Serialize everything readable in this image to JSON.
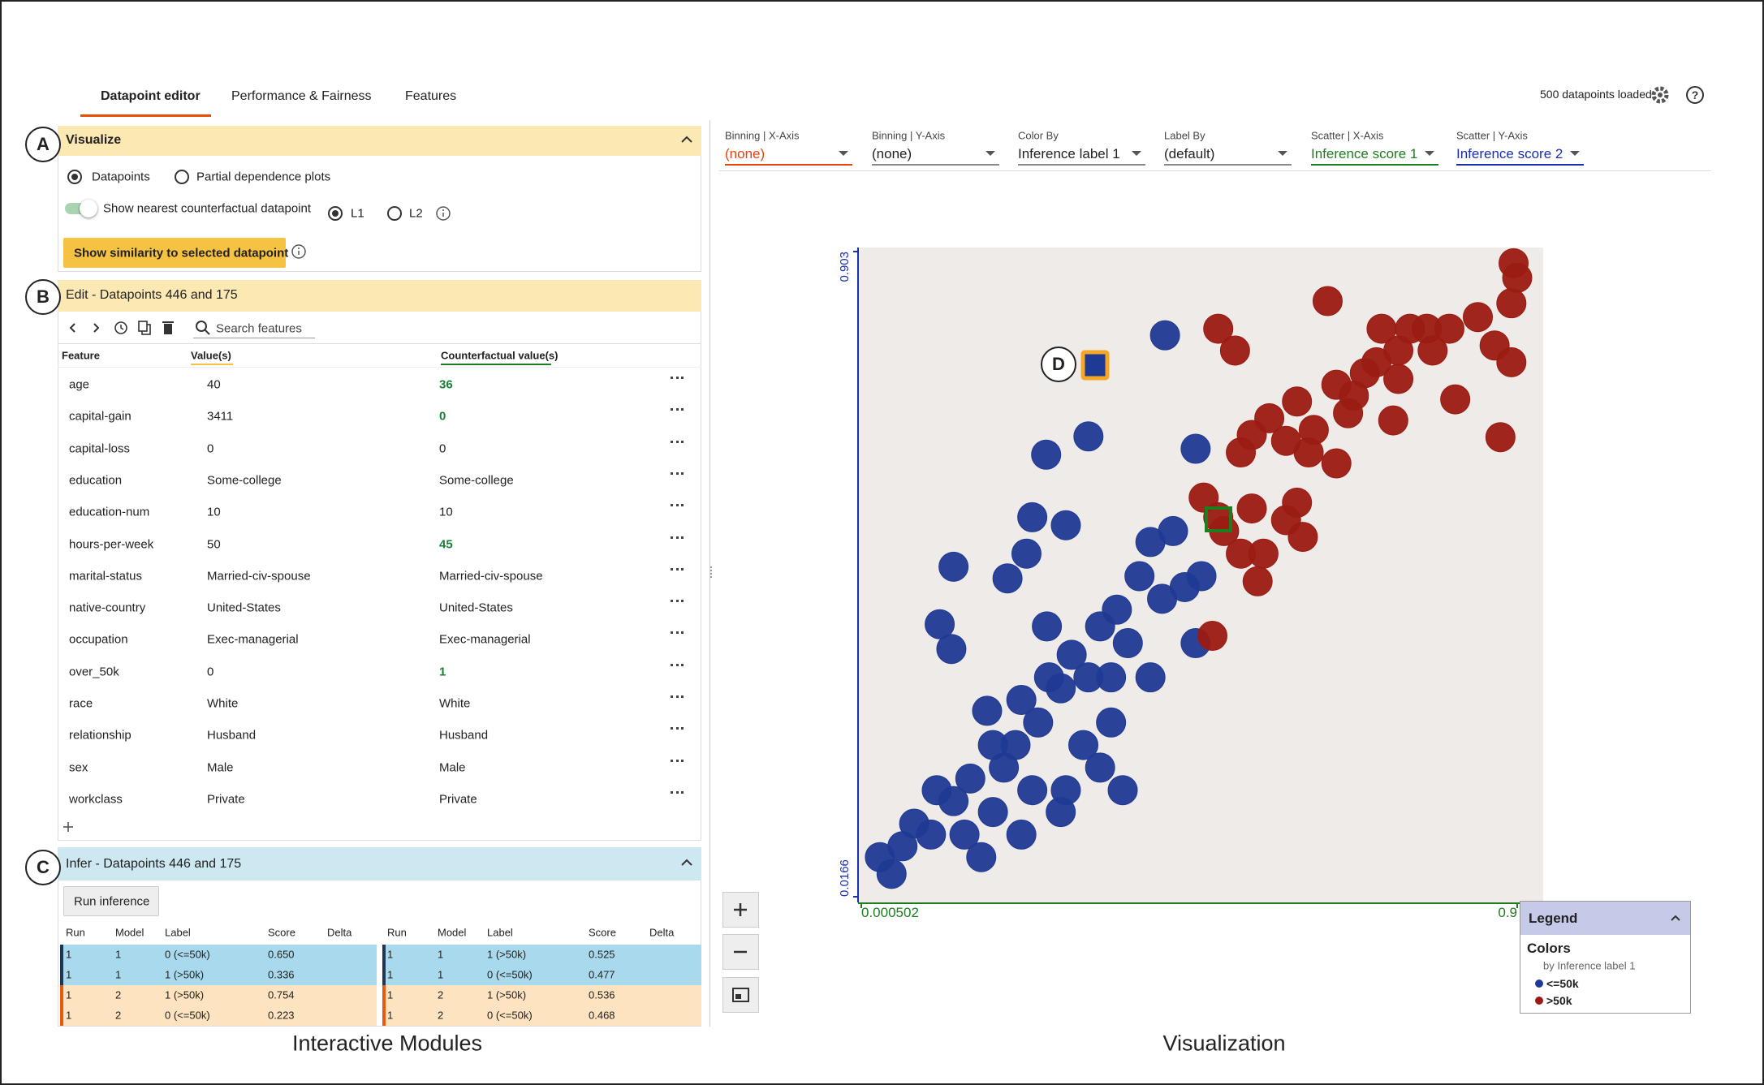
{
  "tabs": [
    "Datapoint editor",
    "Performance & Fairness",
    "Features"
  ],
  "status": "500 datapoints loaded",
  "toolbar": [
    {
      "label": "Binning | X-Axis",
      "value": "(none)",
      "color": "#e8430b"
    },
    {
      "label": "Binning | Y-Axis",
      "value": "(none)",
      "color": "#222222"
    },
    {
      "label": "Color By",
      "value": "Inference label 1",
      "color": "#222222"
    },
    {
      "label": "Label By",
      "value": "(default)",
      "color": "#222222"
    },
    {
      "label": "Scatter | X-Axis",
      "value": "Inference score 1",
      "color": "#1e7d1e"
    },
    {
      "label": "Scatter | Y-Axis",
      "value": "Inference score 2",
      "color": "#1a2fb0"
    }
  ],
  "visualize": {
    "marker": "A",
    "title": "Visualize",
    "options": [
      "Datapoints",
      "Partial dependence plots"
    ],
    "counterfactual": "Show nearest counterfactual datapoint",
    "distances": [
      "L1",
      "L2"
    ],
    "button": "Show similarity to selected datapoint"
  },
  "edit": {
    "marker": "B",
    "title": "Edit - Datapoints 446 and 175",
    "search": "Search features",
    "columns": [
      "Feature",
      "Value(s)",
      "Counterfactual value(s)"
    ],
    "rows": [
      [
        "age",
        "40",
        "36"
      ],
      [
        "capital-gain",
        "3411",
        "0"
      ],
      [
        "capital-loss",
        "0",
        "0"
      ],
      [
        "education",
        "Some-college",
        "Some-college"
      ],
      [
        "education-num",
        "10",
        "10"
      ],
      [
        "hours-per-week",
        "50",
        "45"
      ],
      [
        "marital-status",
        "Married-civ-spouse",
        "Married-civ-spouse"
      ],
      [
        "native-country",
        "United-States",
        "United-States"
      ],
      [
        "occupation",
        "Exec-managerial",
        "Exec-managerial"
      ],
      [
        "over_50k",
        "0",
        "1"
      ],
      [
        "race",
        "White",
        "White"
      ],
      [
        "relationship",
        "Husband",
        "Husband"
      ],
      [
        "sex",
        "Male",
        "Male"
      ],
      [
        "workclass",
        "Private",
        "Private"
      ]
    ]
  },
  "infer": {
    "marker": "C",
    "title": "Infer - Datapoints 446 and 175",
    "button": "Run inference",
    "columns": [
      "Run",
      "Model",
      "Label",
      "Score",
      "Delta"
    ],
    "tables": [
      [
        [
          "1",
          "1",
          "0 (<=50k)",
          "0.650"
        ],
        [
          "1",
          "1",
          "1 (>50k)",
          "0.336"
        ],
        [
          "1",
          "2",
          "1 (>50k)",
          "0.754"
        ],
        [
          "1",
          "2",
          "0 (<=50k)",
          "0.223"
        ]
      ],
      [
        [
          "1",
          "1",
          "1 (>50k)",
          "0.525"
        ],
        [
          "1",
          "1",
          "0 (<=50k)",
          "0.477"
        ],
        [
          "1",
          "2",
          "1 (>50k)",
          "0.536"
        ],
        [
          "1",
          "2",
          "0 (<=50k)",
          "0.468"
        ]
      ]
    ]
  },
  "captions": [
    "Interactive Modules",
    "Visualization"
  ],
  "marker_d": "D",
  "chart_data": {
    "type": "scatter",
    "xlim": [
      0.000502,
      0.9
    ],
    "ylim": [
      0.0166,
      0.903
    ],
    "xticks": [
      0.000502,
      0.9
    ],
    "yticks": [
      0.0166,
      0.903
    ],
    "legend": {
      "title": "Legend",
      "heading": "Colors",
      "subtitle": "by Inference label 1"
    },
    "series": [
      {
        "name": "<=50k",
        "color": "#1f3a93",
        "x": [
          0.026,
          0.042,
          0.057,
          0.073,
          0.096,
          0.104,
          0.127,
          0.15,
          0.142,
          0.165,
          0.181,
          0.22,
          0.196,
          0.212,
          0.173,
          0.22,
          0.243,
          0.258,
          0.274,
          0.289,
          0.312,
          0.328,
          0.351,
          0.366,
          0.382,
          0.397,
          0.413,
          0.428,
          0.444,
          0.459,
          0.467,
          0.343,
          0.305,
          0.281,
          0.235,
          0.359,
          0.227,
          0.281,
          0.235,
          0.201,
          0.127,
          0.108,
          0.124,
          0.255,
          0.254,
          0.312,
          0.417,
          0.459,
          0.397,
          0.343,
          0.328,
          0.274,
          0.181
        ],
        "values": [
          0.071,
          0.048,
          0.086,
          0.117,
          0.102,
          0.163,
          0.148,
          0.179,
          0.102,
          0.071,
          0.133,
          0.102,
          0.194,
          0.225,
          0.272,
          0.287,
          0.256,
          0.318,
          0.303,
          0.349,
          0.318,
          0.388,
          0.411,
          0.365,
          0.457,
          0.318,
          0.426,
          0.519,
          0.442,
          0.365,
          0.457,
          0.256,
          0.225,
          0.163,
          0.163,
          0.163,
          0.488,
          0.527,
          0.538,
          0.454,
          0.47,
          0.391,
          0.357,
          0.388,
          0.624,
          0.649,
          0.788,
          0.632,
          0.504,
          0.318,
          0.194,
          0.133,
          0.225
        ]
      },
      {
        "name": ">50k",
        "color": "#9b1b12",
        "x": [
          0.482,
          0.49,
          0.513,
          0.47,
          0.498,
          0.521,
          0.544,
          0.552,
          0.536,
          0.583,
          0.598,
          0.606,
          0.521,
          0.536,
          0.56,
          0.598,
          0.614,
          0.652,
          0.621,
          0.652,
          0.676,
          0.691,
          0.714,
          0.707,
          0.737,
          0.753,
          0.776,
          0.784,
          0.807,
          0.815,
          0.73,
          0.737,
          0.846,
          0.869,
          0.892,
          0.877,
          0.892,
          0.9,
          0.895,
          0.64,
          0.668,
          0.583,
          0.49
        ],
        "values": [
          0.375,
          0.797,
          0.767,
          0.565,
          0.519,
          0.488,
          0.45,
          0.488,
          0.55,
          0.534,
          0.558,
          0.511,
          0.627,
          0.651,
          0.674,
          0.697,
          0.627,
          0.612,
          0.658,
          0.72,
          0.705,
          0.736,
          0.797,
          0.751,
          0.767,
          0.797,
          0.797,
          0.767,
          0.797,
          0.7,
          0.671,
          0.728,
          0.813,
          0.774,
          0.751,
          0.648,
          0.832,
          0.867,
          0.887,
          0.835,
          0.681,
          0.643,
          0.538
        ]
      }
    ]
  }
}
